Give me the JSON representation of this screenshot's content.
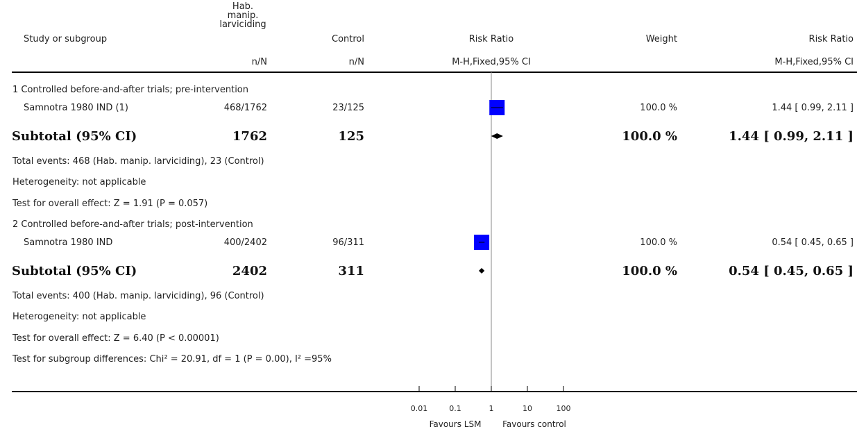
{
  "headers": {
    "study": "Study or subgroup",
    "treatment_line1": "Hab.",
    "treatment_line2": "manip.",
    "treatment_line3": "larviciding",
    "control": "Control",
    "rr": "Risk Ratio",
    "weight": "Weight",
    "rr2": "Risk Ratio",
    "treatment_sub": "n/N",
    "control_sub": "n/N",
    "rr_sub": "M-H,Fixed,95% CI",
    "rr2_sub": "M-H,Fixed,95% CI"
  },
  "groups": [
    {
      "title": "1 Controlled before-and-after trials; pre-intervention",
      "study": {
        "name": "Samnotra 1980 IND (1)",
        "treatment": "468/1762",
        "control": "23/125",
        "weight": "100.0 %",
        "ci": "1.44 [ 0.99, 2.11 ]"
      },
      "subtotal": {
        "label": "Subtotal (95% CI)",
        "treatment": "1762",
        "control": "125",
        "weight": "100.0 %",
        "ci": "1.44 [ 0.99, 2.11 ]"
      },
      "events": "Total events: 468 (Hab. manip. larviciding), 23 (Control)",
      "heterogeneity": "Heterogeneity: not applicable",
      "overall": "Test for overall effect: Z = 1.91 (P = 0.057)"
    },
    {
      "title": "2 Controlled before-and-after trials; post-intervention",
      "study": {
        "name": "Samnotra 1980 IND",
        "treatment": "400/2402",
        "control": "96/311",
        "weight": "100.0 %",
        "ci": "0.54 [ 0.45, 0.65 ]"
      },
      "subtotal": {
        "label": "Subtotal (95% CI)",
        "treatment": "2402",
        "control": "311",
        "weight": "100.0 %",
        "ci": "0.54 [ 0.45, 0.65 ]"
      },
      "events": "Total events: 400 (Hab. manip. larviciding), 96 (Control)",
      "heterogeneity": "Heterogeneity: not applicable",
      "overall": "Test for overall effect: Z = 6.40 (P < 0.00001)"
    }
  ],
  "subgroup_test": "Test for subgroup differences: Chi² = 20.91, df = 1 (P = 0.00), I² =95%",
  "axis": {
    "ticks": [
      "0.01",
      "0.1",
      "1",
      "10",
      "100"
    ],
    "favours_left": "Favours LSM",
    "favours_right": "Favours control"
  },
  "colors": {
    "study_marker": "#0000ff",
    "diamond": "#000000",
    "axis": "#000000"
  },
  "chart_data": {
    "type": "forest",
    "scale": "log",
    "xlim": [
      0.01,
      100
    ],
    "xticks": [
      0.01,
      0.1,
      1,
      10,
      100
    ],
    "null_value": 1,
    "studies": [
      {
        "name": "Samnotra 1980 IND (1)",
        "group": 1,
        "rr": 1.44,
        "lo": 0.99,
        "hi": 2.11,
        "weight": 100.0
      },
      {
        "name": "Samnotra 1980 IND",
        "group": 2,
        "rr": 0.54,
        "lo": 0.45,
        "hi": 0.65,
        "weight": 100.0
      }
    ],
    "subtotals": [
      {
        "group": 1,
        "rr": 1.44,
        "lo": 0.99,
        "hi": 2.11
      },
      {
        "group": 2,
        "rr": 0.54,
        "lo": 0.45,
        "hi": 0.65
      }
    ]
  }
}
